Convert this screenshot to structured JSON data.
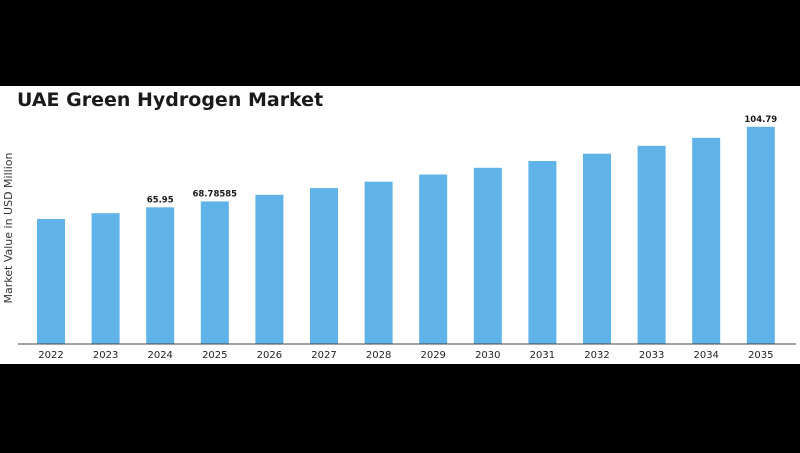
{
  "chart_data": {
    "type": "bar",
    "title": "UAE Green Hydrogen Market",
    "ylabel": "Market Value in USD Million",
    "xlabel": "",
    "categories": [
      "2022",
      "2023",
      "2024",
      "2025",
      "2026",
      "2027",
      "2028",
      "2029",
      "2030",
      "2031",
      "2032",
      "2033",
      "2034",
      "2035"
    ],
    "values": [
      60.3,
      63.1,
      65.95,
      68.78585,
      72.0,
      75.2,
      78.3,
      81.8,
      85.0,
      88.3,
      91.8,
      95.6,
      99.5,
      104.79
    ],
    "data_labels": [
      {
        "category": "2024",
        "text": "65.95"
      },
      {
        "category": "2025",
        "text": "68.78585"
      },
      {
        "category": "2035",
        "text": "104.79"
      }
    ],
    "ylim": [
      0,
      110
    ],
    "grid": false,
    "legend": "none",
    "bar_color": "#5fb3e8"
  }
}
